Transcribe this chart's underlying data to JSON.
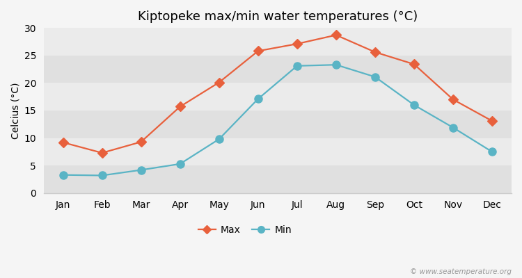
{
  "title": "Kiptopeke max/min water temperatures (°C)",
  "ylabel": "Celcius (°C)",
  "months": [
    "Jan",
    "Feb",
    "Mar",
    "Apr",
    "May",
    "Jun",
    "Jul",
    "Aug",
    "Sep",
    "Oct",
    "Nov",
    "Dec"
  ],
  "max_values": [
    9.2,
    7.3,
    9.3,
    15.7,
    20.1,
    25.8,
    27.1,
    28.7,
    25.6,
    23.4,
    17.0,
    13.1
  ],
  "min_values": [
    3.3,
    3.2,
    4.2,
    5.3,
    9.8,
    17.1,
    23.1,
    23.3,
    21.1,
    16.0,
    11.9,
    7.5
  ],
  "max_color": "#e8603c",
  "min_color": "#5ab4c5",
  "figure_bg_color": "#f5f5f5",
  "plot_bg_color": "#ebebeb",
  "band_color_dark": "#e0e0e0",
  "band_color_light": "#ebebeb",
  "ylim": [
    0,
    30
  ],
  "yticks": [
    0,
    5,
    10,
    15,
    20,
    25,
    30
  ],
  "legend_labels": [
    "Max",
    "Min"
  ],
  "watermark": "© www.seatemperature.org",
  "title_fontsize": 13,
  "axis_label_fontsize": 10,
  "tick_fontsize": 10,
  "marker_size_max": 7,
  "marker_size_min": 8,
  "line_width": 1.6
}
